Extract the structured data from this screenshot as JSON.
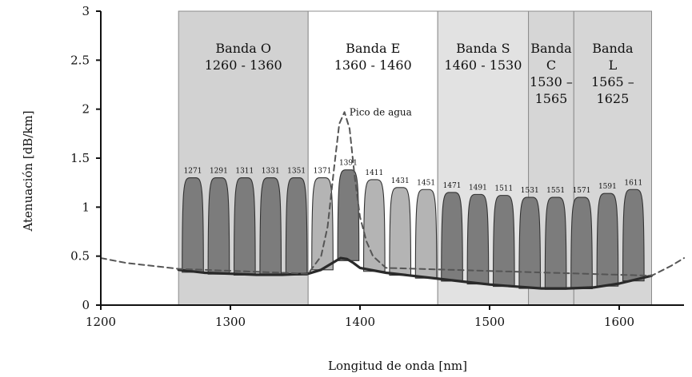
{
  "chart_data": {
    "type": "area",
    "title": "",
    "xlabel": "Longitud de onda [nm]",
    "ylabel": "Atenuación [dB/km]",
    "xlim": [
      1200,
      1650
    ],
    "ylim": [
      0,
      3
    ],
    "x_ticks": [
      "1200",
      "1300",
      "1400",
      "1500",
      "1600"
    ],
    "y_ticks": [
      "0",
      "0.5",
      "1",
      "1.5",
      "2",
      "2.5",
      "3"
    ],
    "grid": false,
    "bands": [
      {
        "name": "Banda O",
        "range": "1260 - 1360",
        "x0": 1260,
        "x1": 1360,
        "shade": "#d2d2d2",
        "label_lines": [
          "Banda O",
          "1260 - 1360"
        ]
      },
      {
        "name": "Banda E",
        "range": "1360 - 1460",
        "x0": 1360,
        "x1": 1460,
        "shade": "#ffffff",
        "label_lines": [
          "Banda E",
          "1360 - 1460"
        ]
      },
      {
        "name": "Banda S",
        "range": "1460 - 1530",
        "x0": 1460,
        "x1": 1530,
        "shade": "#e2e2e2",
        "label_lines": [
          "Banda S",
          "1460 - 1530"
        ]
      },
      {
        "name": "Banda C",
        "range": "1530 – 1565",
        "x0": 1530,
        "x1": 1565,
        "shade": "#d6d6d6",
        "label_lines": [
          "Banda",
          "C",
          "1530 –",
          "1565"
        ]
      },
      {
        "name": "Banda L",
        "range": "1565 – 1625",
        "x0": 1565,
        "x1": 1625,
        "shade": "#d6d6d6",
        "label_lines": [
          "Banda",
          "L",
          "1565 –",
          "1625"
        ]
      }
    ],
    "channels": {
      "wavelengths": [
        1271,
        1291,
        1311,
        1331,
        1351,
        1371,
        1391,
        1411,
        1431,
        1451,
        1471,
        1491,
        1511,
        1531,
        1551,
        1571,
        1591,
        1611
      ],
      "peaks": [
        1.3,
        1.3,
        1.3,
        1.3,
        1.3,
        1.3,
        1.38,
        1.28,
        1.2,
        1.18,
        1.15,
        1.13,
        1.12,
        1.1,
        1.1,
        1.1,
        1.14,
        1.18
      ],
      "labels": [
        "1271",
        "1291",
        "1311",
        "1331",
        "1351",
        "1371",
        "1391",
        "1411",
        "1431",
        "1451",
        "1471",
        "1491",
        "1511",
        "1531",
        "1551",
        "1571",
        "1591",
        "1611"
      ],
      "colors": [
        "#7c7c7c",
        "#7c7c7c",
        "#7c7c7c",
        "#7c7c7c",
        "#7c7c7c",
        "#b4b4b4",
        "#7c7c7c",
        "#b4b4b4",
        "#b4b4b4",
        "#b4b4b4",
        "#7c7c7c",
        "#7c7c7c",
        "#7c7c7c",
        "#7c7c7c",
        "#7c7c7c",
        "#7c7c7c",
        "#7c7c7c",
        "#7c7c7c"
      ]
    },
    "series": [
      {
        "style": "solid",
        "x": [
          1260,
          1280,
          1300,
          1320,
          1340,
          1360,
          1370,
          1380,
          1385,
          1390,
          1395,
          1400,
          1420,
          1440,
          1460,
          1480,
          1500,
          1520,
          1540,
          1560,
          1580,
          1600,
          1625
        ],
        "y": [
          0.36,
          0.33,
          0.32,
          0.31,
          0.31,
          0.32,
          0.36,
          0.44,
          0.48,
          0.47,
          0.43,
          0.38,
          0.33,
          0.3,
          0.27,
          0.24,
          0.21,
          0.19,
          0.17,
          0.17,
          0.18,
          0.22,
          0.3
        ]
      },
      {
        "style": "dashed",
        "x": [
          1200,
          1220,
          1240,
          1260,
          1360,
          1370,
          1375,
          1380,
          1384,
          1388,
          1392,
          1396,
          1400,
          1405,
          1410,
          1420,
          1625,
          1640,
          1650
        ],
        "y": [
          0.48,
          0.43,
          0.4,
          0.37,
          0.32,
          0.5,
          0.8,
          1.4,
          1.85,
          1.97,
          1.8,
          1.3,
          0.9,
          0.65,
          0.5,
          0.38,
          0.3,
          0.4,
          0.48
        ]
      }
    ],
    "annotations": [
      {
        "text": "Pico de agua",
        "x": 1390,
        "y": 1.97
      }
    ]
  }
}
